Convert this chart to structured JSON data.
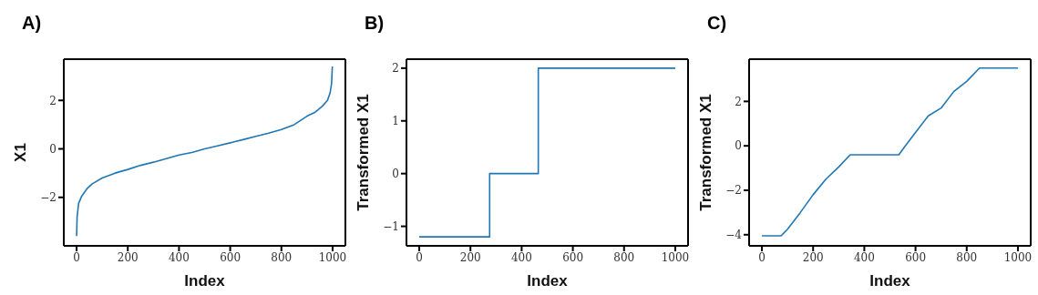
{
  "chart_data": [
    {
      "type": "line",
      "title": "A)",
      "xlabel": "Index",
      "ylabel": "X1",
      "color": "#1f77b4",
      "x": [
        0,
        2,
        8,
        20,
        40,
        60,
        100,
        150,
        200,
        250,
        300,
        350,
        400,
        450,
        500,
        550,
        600,
        650,
        700,
        750,
        800,
        850,
        900,
        930,
        960,
        980,
        990,
        996,
        999
      ],
      "values": [
        -3.6,
        -2.8,
        -2.25,
        -1.95,
        -1.65,
        -1.45,
        -1.2,
        -1.0,
        -0.85,
        -0.68,
        -0.55,
        -0.4,
        -0.25,
        -0.15,
        0.0,
        0.12,
        0.25,
        0.38,
        0.52,
        0.65,
        0.8,
        1.0,
        1.35,
        1.5,
        1.76,
        2.0,
        2.3,
        2.7,
        3.4
      ],
      "xlim": [
        -50,
        1050
      ],
      "xticks": [
        0,
        200,
        400,
        600,
        800,
        1000
      ],
      "ylim": [
        -4.0,
        3.7
      ],
      "yticks": [
        {
          "value": -2,
          "label": "−2"
        },
        0,
        2
      ]
    },
    {
      "type": "step",
      "title": "B)",
      "xlabel": "Index",
      "ylabel": "Transformed X1",
      "color": "#1f77b4",
      "x": [
        0,
        275,
        465,
        1000
      ],
      "values": [
        -1.2,
        0,
        2,
        2
      ],
      "xlim": [
        -50,
        1050
      ],
      "xticks": [
        0,
        200,
        400,
        600,
        800,
        1000
      ],
      "ylim": [
        -1.37,
        2.17
      ],
      "yticks": [
        {
          "value": -1,
          "label": "−1"
        },
        0,
        1,
        2
      ]
    },
    {
      "type": "line",
      "title": "C)",
      "xlabel": "Index",
      "ylabel": "Transformed X1",
      "color": "#1f77b4",
      "x": [
        0,
        75,
        100,
        150,
        200,
        250,
        300,
        345,
        535,
        560,
        600,
        650,
        700,
        750,
        800,
        850,
        1000
      ],
      "values": [
        -4.05,
        -4.05,
        -3.75,
        -3.0,
        -2.2,
        -1.5,
        -0.95,
        -0.4,
        -0.4,
        0.0,
        0.6,
        1.35,
        1.7,
        2.45,
        2.9,
        3.5,
        3.5
      ],
      "xlim": [
        -50,
        1050
      ],
      "xticks": [
        0,
        200,
        400,
        600,
        800,
        1000
      ],
      "ylim": [
        -4.5,
        3.9
      ],
      "yticks": [
        {
          "value": -4,
          "label": "−4"
        },
        {
          "value": -2,
          "label": "−2"
        },
        0,
        2
      ]
    }
  ]
}
